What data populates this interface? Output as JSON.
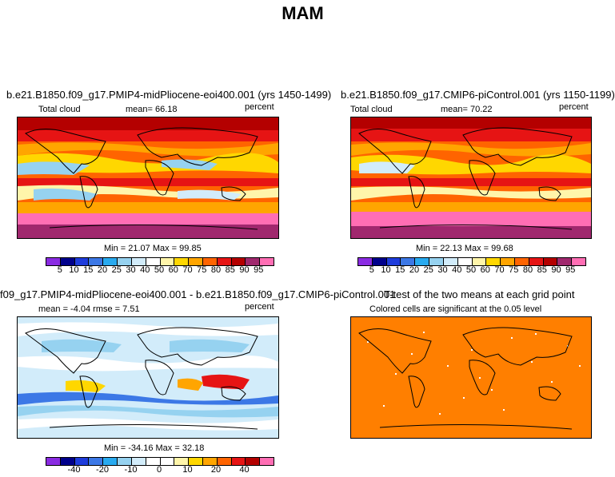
{
  "main_title": "MAM",
  "panels": [
    {
      "title": "b.e21.B1850.f09_g17.PMIP4-midPliocene-eoi400.001 (yrs 1450-1499)",
      "left_label": "Total cloud",
      "mean_text": "mean=  66.18",
      "right_label": "percent",
      "minmax": "Min =  21.07 Max =  99.85"
    },
    {
      "title": "b.e21.B1850.f09_g17.CMIP6-piControl.001 (yrs 1150-1199)",
      "left_label": "Total cloud",
      "mean_text": "mean=  70.22",
      "right_label": "percent",
      "minmax": "Min =  22.13 Max =  99.68"
    },
    {
      "title": "f09_g17.PMIP4-midPliocene-eoi400.001 - b.e21.B1850.f09_g17.CMIP6-piControl.001",
      "left_label": "mean =  -4.04     rmse =    7.51",
      "right_label": "percent",
      "minmax": "Min = -34.16 Max =  32.18"
    },
    {
      "title": "T-test of the two means at each grid point",
      "subtitle": "Colored cells are significant at the 0.05 level"
    }
  ],
  "colorbar_abs": {
    "colors": [
      "#8a2be2",
      "#00008b",
      "#1e3cdc",
      "#3c78e6",
      "#28aaf0",
      "#96d2f0",
      "#d2ecfa",
      "#ffffff",
      "#fff5aa",
      "#ffd700",
      "#ffa500",
      "#ff6400",
      "#e61414",
      "#b40000",
      "#a0286e",
      "#ff6eb4"
    ],
    "ticks": [
      "5",
      "10",
      "15",
      "20",
      "25",
      "30",
      "40",
      "50",
      "60",
      "70",
      "75",
      "80",
      "85",
      "90",
      "95"
    ]
  },
  "colorbar_diff": {
    "colors": [
      "#8a2be2",
      "#00008b",
      "#1e3cdc",
      "#3c78e6",
      "#28aaf0",
      "#96d2f0",
      "#d2ecfa",
      "#ffffff",
      "#ffffff",
      "#fff5aa",
      "#ffd700",
      "#ffa500",
      "#ff6400",
      "#e61414",
      "#b40000",
      "#ff6eb4"
    ],
    "ticks": [
      "-40",
      "-20",
      "-10",
      "0",
      "10",
      "20",
      "40"
    ]
  },
  "chart_data": [
    {
      "type": "heatmap",
      "title": "b.e21.B1850.f09_g17.PMIP4-midPliocene-eoi400.001 (yrs 1450-1499)",
      "variable": "Total cloud",
      "units": "percent",
      "mean": 66.18,
      "min": 21.07,
      "max": 99.85,
      "levels": [
        5,
        10,
        15,
        20,
        25,
        30,
        40,
        50,
        60,
        70,
        75,
        80,
        85,
        90,
        95
      ]
    },
    {
      "type": "heatmap",
      "title": "b.e21.B1850.f09_g17.CMIP6-piControl.001 (yrs 1150-1199)",
      "variable": "Total cloud",
      "units": "percent",
      "mean": 70.22,
      "min": 22.13,
      "max": 99.68,
      "levels": [
        5,
        10,
        15,
        20,
        25,
        30,
        40,
        50,
        60,
        70,
        75,
        80,
        85,
        90,
        95
      ]
    },
    {
      "type": "heatmap",
      "title": "f09_g17.PMIP4-midPliocene-eoi400.001 - b.e21.B1850.f09_g17.CMIP6-piControl.001",
      "units": "percent",
      "mean": -4.04,
      "rmse": 7.51,
      "min": -34.16,
      "max": 32.18,
      "levels": [
        -40,
        -20,
        -10,
        0,
        10,
        20,
        40
      ]
    },
    {
      "type": "heatmap",
      "title": "T-test of the two means at each grid point",
      "note": "Colored cells are significant at the 0.05 level",
      "significance_level": 0.05
    }
  ]
}
